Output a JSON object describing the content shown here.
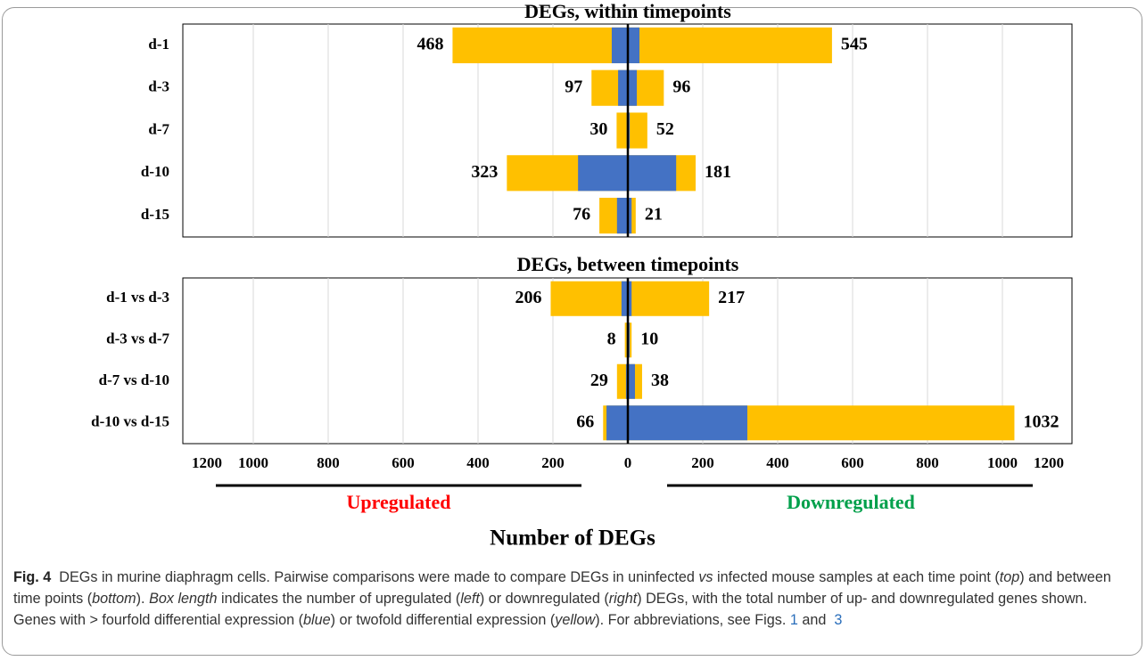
{
  "chart_data": [
    {
      "type": "butterfly",
      "title": "DEGs, within timepoints",
      "categories": [
        "d-1",
        "d-3",
        "d-7",
        "d-10",
        "d-15"
      ],
      "up_values": [
        468,
        97,
        30,
        323,
        76
      ],
      "up_fourfold": [
        43,
        26,
        3,
        133,
        29
      ],
      "down_values": [
        545,
        96,
        52,
        181,
        21
      ],
      "down_fourfold": [
        31,
        24,
        5,
        129,
        10
      ],
      "twofold_color": "#ffc000",
      "fourfold_color": "#4472c4",
      "xlim": [
        -1200,
        1200
      ],
      "xticks": [
        {
          "value": -1200,
          "label": "1200"
        },
        {
          "value": -1000,
          "label": "1000"
        },
        {
          "value": -800,
          "label": "800"
        },
        {
          "value": -600,
          "label": "600"
        },
        {
          "value": -400,
          "label": "400"
        },
        {
          "value": -200,
          "label": "200"
        },
        0,
        200,
        400,
        600,
        800,
        1000,
        1200
      ],
      "grid": true
    },
    {
      "type": "butterfly",
      "title": "DEGs, between timepoints",
      "categories": [
        "d-1 vs d-3",
        "d-3 vs d-7",
        "d-7 vs d-10",
        "d-10 vs d-15"
      ],
      "up_values": [
        206,
        8,
        29,
        66
      ],
      "up_fourfold": [
        17,
        3,
        5,
        57
      ],
      "down_values": [
        217,
        10,
        38,
        1032
      ],
      "down_fourfold": [
        10,
        5,
        19,
        319
      ],
      "twofold_color": "#ffc000",
      "fourfold_color": "#4472c4",
      "xlim": [
        -1200,
        1200
      ],
      "xticks": [
        {
          "value": -1200,
          "label": "1200"
        },
        {
          "value": -1000,
          "label": "1000"
        },
        {
          "value": -800,
          "label": "800"
        },
        {
          "value": -600,
          "label": "600"
        },
        {
          "value": -400,
          "label": "400"
        },
        {
          "value": -200,
          "label": "200"
        },
        0,
        200,
        400,
        600,
        800,
        1000,
        1200
      ],
      "grid": true,
      "xlabel": "Number of DEGs",
      "left_annotation": "Upregulated",
      "left_annotation_color": "#ff0000",
      "right_annotation": "Downregulated",
      "right_annotation_color": "#00a04b"
    }
  ],
  "caption": [
    {
      "text": "Fig. 4",
      "style": "bold"
    },
    {
      "text": "  DEGs in murine diaphragm cells. Pairwise comparisons were made to compare DEGs in uninfected ",
      "style": "normal"
    },
    {
      "text": "vs",
      "style": "italic"
    },
    {
      "text": " infected mouse samples at each time point (",
      "style": "normal"
    },
    {
      "text": "top",
      "style": "italic"
    },
    {
      "text": ") and between time points (",
      "style": "normal"
    },
    {
      "text": "bottom",
      "style": "italic"
    },
    {
      "text": "). ",
      "style": "normal"
    },
    {
      "text": "Box length",
      "style": "italic"
    },
    {
      "text": " indicates the number of upregulated (",
      "style": "normal"
    },
    {
      "text": "left",
      "style": "italic"
    },
    {
      "text": ") or downregulated (",
      "style": "normal"
    },
    {
      "text": "right",
      "style": "italic"
    },
    {
      "text": ") DEGs, with the total number of up- and downregulated genes shown. Genes with > fourfold differential expression (",
      "style": "normal"
    },
    {
      "text": "blue",
      "style": "italic"
    },
    {
      "text": ") or twofold differential expression (",
      "style": "normal"
    },
    {
      "text": "yellow",
      "style": "italic"
    },
    {
      "text": "). For abbreviations, see Figs. ",
      "style": "normal"
    },
    {
      "text": "1",
      "style": "link"
    },
    {
      "text": " and  ",
      "style": "normal"
    },
    {
      "text": "3",
      "style": "link"
    }
  ]
}
